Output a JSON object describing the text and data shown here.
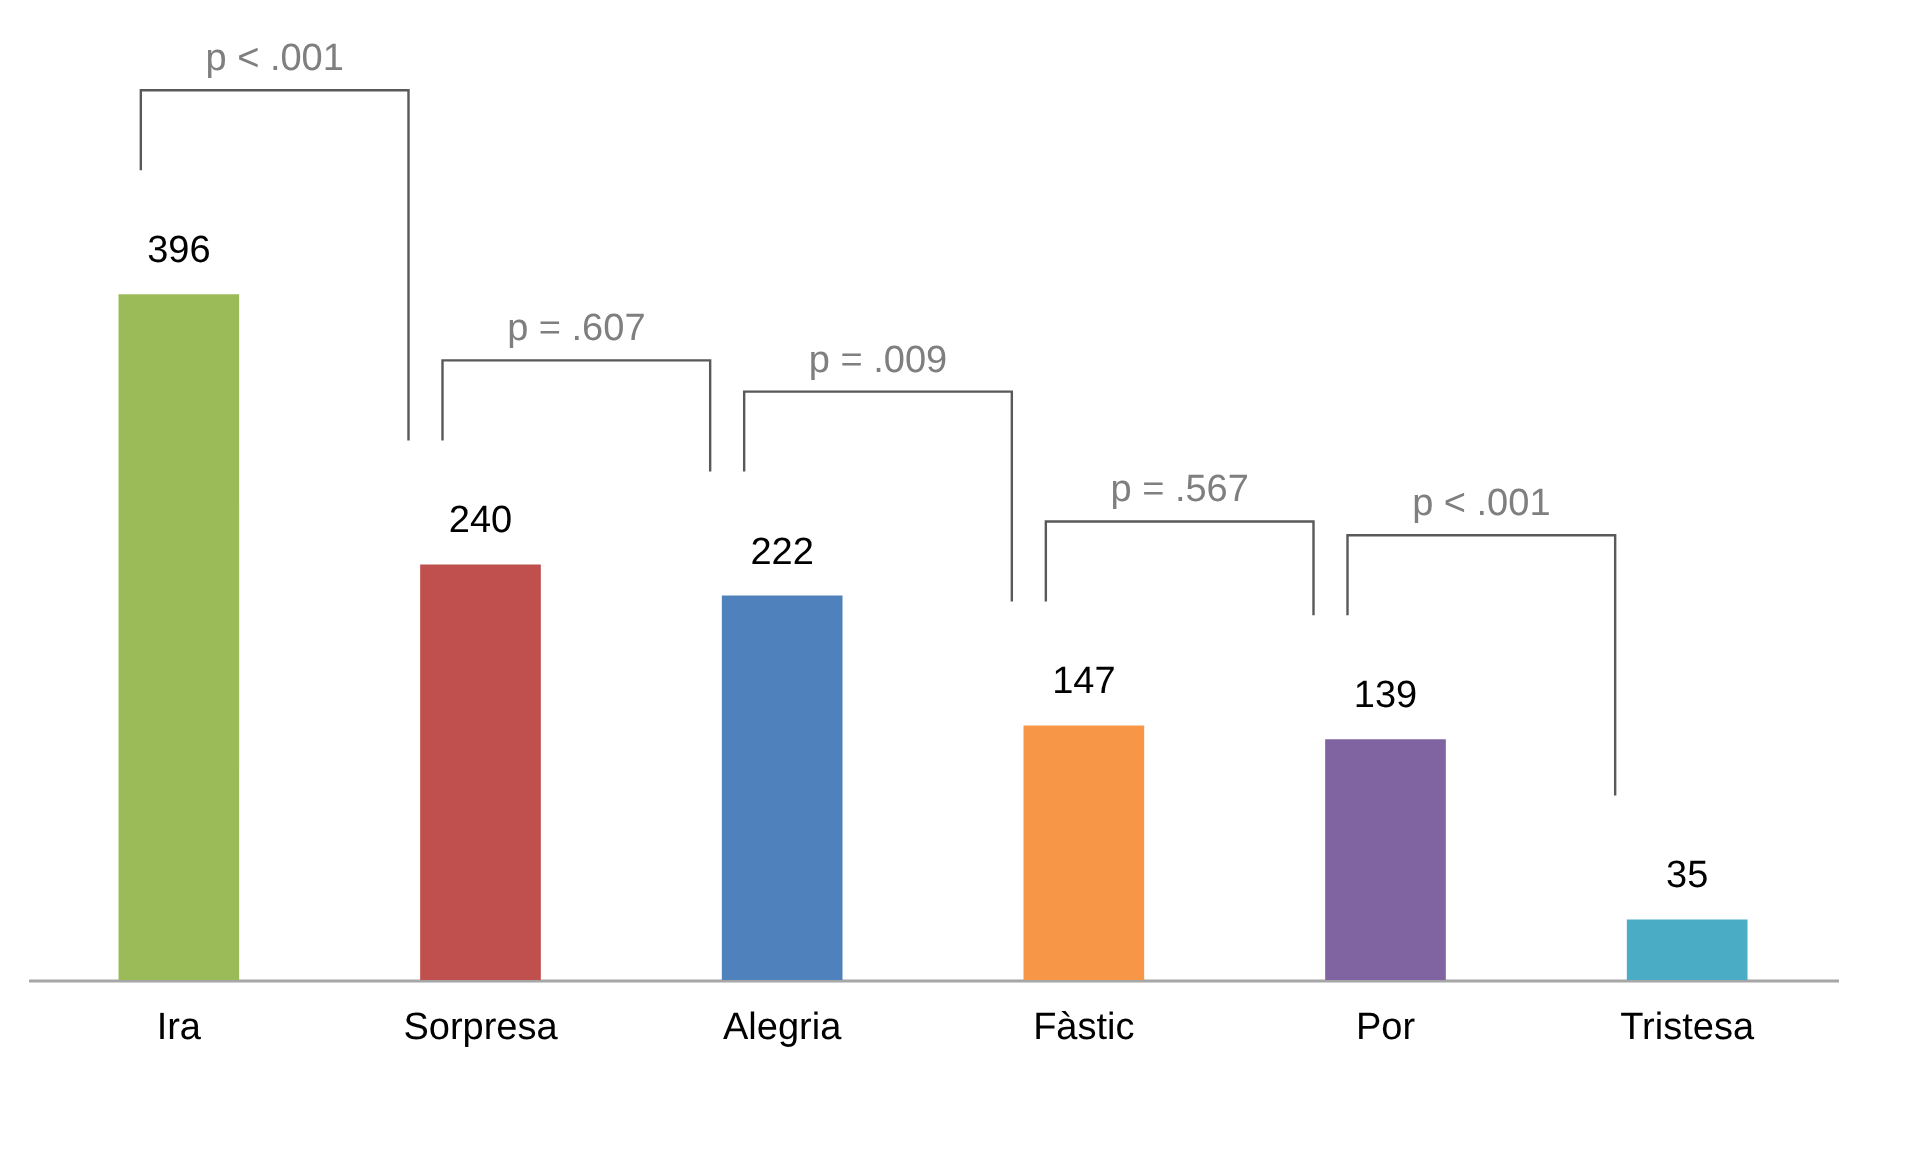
{
  "chart_data": {
    "type": "bar",
    "categories": [
      "Ira",
      "Sorpresa",
      "Alegria",
      "Fàstic",
      "Por",
      "Tristesa"
    ],
    "values": [
      396,
      240,
      222,
      147,
      139,
      35
    ],
    "colors": [
      "#9bbb59",
      "#c0504d",
      "#4f81bd",
      "#f79646",
      "#8064a2",
      "#4bacc6"
    ],
    "data_labels": true,
    "grid": false,
    "annotations": [
      "p < .001",
      "p = .607",
      "p = .009",
      "p = .567",
      "p < .001"
    ]
  }
}
